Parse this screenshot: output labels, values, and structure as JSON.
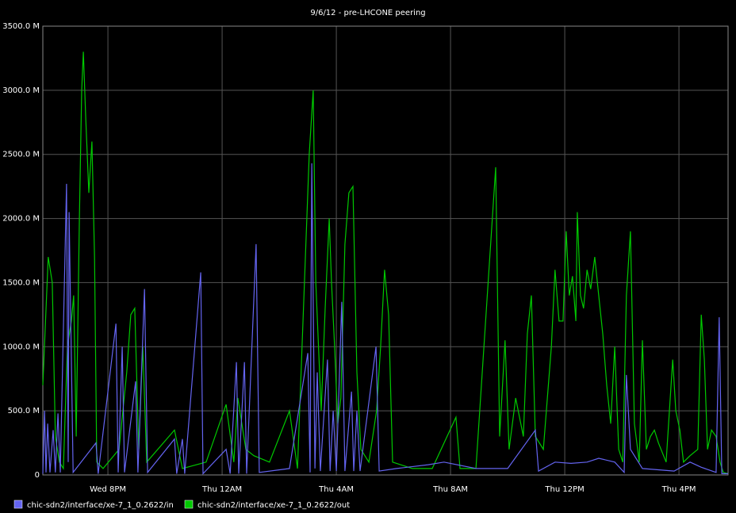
{
  "chart_data": {
    "type": "line",
    "title": "9/6/12 - pre-LHCONE peering",
    "xlim": [
      17.72,
      41.72
    ],
    "xticks": [
      {
        "value": 20,
        "label": "Wed  8PM"
      },
      {
        "value": 24,
        "label": "Thu 12AM"
      },
      {
        "value": 28,
        "label": "Thu  4AM"
      },
      {
        "value": 32,
        "label": "Thu  8AM"
      },
      {
        "value": 36,
        "label": "Thu 12PM"
      },
      {
        "value": 40,
        "label": "Thu  4PM"
      }
    ],
    "ylim": [
      0,
      3500
    ],
    "yticks": [
      {
        "value": 0,
        "label": "0"
      },
      {
        "value": 500,
        "label": "500.0 M"
      },
      {
        "value": 1000,
        "label": "1000.0 M"
      },
      {
        "value": 1500,
        "label": "1500.0 M"
      },
      {
        "value": 2000,
        "label": "2000.0 M"
      },
      {
        "value": 2500,
        "label": "2500.0 M"
      },
      {
        "value": 3000,
        "label": "3000.0 M"
      },
      {
        "value": 3500,
        "label": "3500.0 M"
      }
    ],
    "grid": true,
    "series": [
      {
        "name": "chic-sdn2/interface/xe-7_1_0.2622/in",
        "color": "#6464f0",
        "x": [
          17.72,
          17.78,
          17.83,
          17.89,
          17.97,
          18.08,
          18.16,
          18.25,
          18.33,
          18.55,
          18.61,
          18.64,
          18.78,
          19.58,
          19.66,
          20.28,
          20.36,
          20.5,
          20.58,
          20.97,
          21.05,
          21.28,
          21.39,
          22.33,
          22.41,
          22.61,
          22.69,
          23.25,
          23.33,
          24.14,
          24.28,
          24.5,
          24.58,
          24.78,
          24.86,
          25.19,
          25.3,
          26.36,
          27.0,
          27.08,
          27.14,
          27.25,
          27.33,
          27.44,
          27.69,
          27.78,
          27.89,
          28.0,
          28.19,
          28.3,
          28.53,
          28.61,
          28.72,
          28.83,
          29.39,
          29.5,
          30.11,
          31.22,
          31.77,
          32.89,
          34.0,
          34.97,
          35.08,
          35.66,
          36.22,
          36.78,
          37.19,
          37.75,
          38.08,
          38.16,
          38.3,
          38.72,
          39.83,
          40.39,
          40.78,
          41.3,
          41.41,
          41.5,
          41.72
        ],
        "values": [
          10,
          500,
          20,
          400,
          20,
          350,
          20,
          480,
          20,
          2270,
          100,
          2050,
          20,
          250,
          10,
          1180,
          20,
          1000,
          20,
          730,
          20,
          1450,
          20,
          280,
          10,
          280,
          10,
          1580,
          10,
          200,
          10,
          880,
          10,
          880,
          10,
          1800,
          20,
          50,
          950,
          20,
          2430,
          50,
          800,
          30,
          900,
          30,
          500,
          30,
          1350,
          30,
          650,
          30,
          500,
          30,
          1000,
          30,
          50,
          80,
          100,
          50,
          50,
          350,
          30,
          100,
          90,
          100,
          130,
          100,
          20,
          780,
          200,
          50,
          30,
          100,
          60,
          20,
          1230,
          10,
          10
        ]
      },
      {
        "name": "chic-sdn2/interface/xe-7_1_0.2622/out",
        "color": "#00c800",
        "x": [
          17.72,
          17.91,
          18.05,
          18.16,
          18.3,
          18.44,
          18.58,
          18.72,
          18.8,
          18.89,
          19.0,
          19.08,
          19.14,
          19.22,
          19.33,
          19.44,
          19.53,
          19.61,
          19.83,
          20.39,
          20.66,
          20.8,
          20.94,
          21.08,
          21.22,
          21.36,
          22.33,
          22.61,
          23.44,
          24.14,
          24.41,
          24.55,
          24.83,
          25.11,
          25.66,
          26.36,
          26.64,
          27.05,
          27.19,
          27.28,
          27.47,
          27.61,
          27.75,
          27.83,
          27.94,
          28.05,
          28.16,
          28.3,
          28.44,
          28.58,
          28.72,
          28.86,
          29.14,
          29.41,
          29.55,
          29.69,
          29.83,
          29.97,
          30.66,
          31.36,
          32.19,
          32.33,
          32.89,
          33.58,
          33.72,
          33.91,
          34.05,
          34.28,
          34.55,
          34.69,
          34.83,
          34.97,
          35.25,
          35.53,
          35.66,
          35.8,
          35.94,
          36.05,
          36.16,
          36.27,
          36.39,
          36.44,
          36.55,
          36.66,
          36.78,
          36.91,
          37.05,
          37.19,
          37.33,
          37.47,
          37.61,
          37.75,
          37.89,
          38.03,
          38.16,
          38.3,
          38.44,
          38.61,
          38.72,
          38.86,
          39.0,
          39.14,
          39.28,
          39.55,
          39.78,
          39.89,
          40.03,
          40.16,
          40.39,
          40.66,
          40.78,
          40.89,
          41.0,
          41.14,
          41.3,
          41.44,
          41.55,
          41.72
        ],
        "values": [
          700,
          1700,
          1500,
          300,
          100,
          50,
          1000,
          1200,
          1400,
          300,
          2000,
          3000,
          3300,
          2800,
          2200,
          2600,
          1700,
          100,
          50,
          200,
          800,
          1250,
          1300,
          200,
          1000,
          100,
          350,
          50,
          100,
          550,
          100,
          600,
          200,
          150,
          100,
          500,
          50,
          2500,
          3000,
          1500,
          500,
          1300,
          2000,
          1500,
          1000,
          400,
          600,
          1800,
          2200,
          2250,
          800,
          200,
          100,
          500,
          1000,
          1600,
          1250,
          100,
          50,
          50,
          450,
          50,
          50,
          2400,
          300,
          1050,
          200,
          600,
          300,
          1100,
          1400,
          300,
          200,
          1000,
          1600,
          1200,
          1200,
          1900,
          1400,
          1550,
          1200,
          2050,
          1400,
          1300,
          1600,
          1450,
          1700,
          1400,
          1100,
          700,
          400,
          1000,
          200,
          100,
          1400,
          1900,
          400,
          100,
          1050,
          200,
          300,
          350,
          250,
          100,
          900,
          500,
          350,
          100,
          150,
          200,
          1250,
          900,
          200,
          350,
          300,
          100,
          20,
          10
        ]
      }
    ]
  }
}
